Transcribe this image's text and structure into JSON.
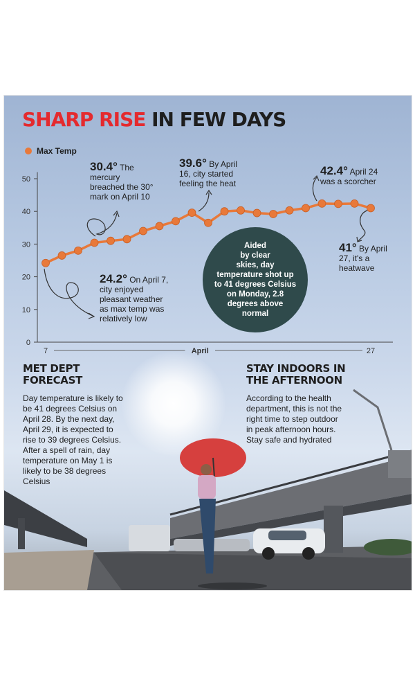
{
  "title": {
    "highlight": "SHARP RISE",
    "rest": "IN FEW DAYS"
  },
  "legend": {
    "label": "Max Temp"
  },
  "chart_data": {
    "type": "line",
    "series": [
      {
        "name": "Max Temp",
        "color": "#e8793a",
        "x": [
          7,
          8,
          9,
          10,
          11,
          12,
          13,
          14,
          15,
          16,
          17,
          18,
          19,
          20,
          21,
          22,
          23,
          24,
          25,
          26,
          27
        ],
        "values": [
          24.2,
          26.5,
          28,
          30.4,
          31,
          31.5,
          34,
          35.5,
          37,
          39.6,
          36.5,
          40,
          40.3,
          39.5,
          39.2,
          40.3,
          41,
          42.4,
          42.3,
          42.4,
          41
        ]
      }
    ],
    "y_ticks": [
      0,
      10,
      20,
      30,
      40,
      50
    ],
    "ylim": [
      0,
      52
    ],
    "xlim": [
      7,
      27
    ],
    "x_tick_labels": [
      {
        "value": 7,
        "label": "7"
      },
      {
        "value": 27,
        "label": "27"
      }
    ],
    "x_axis_label": "April",
    "grid": false
  },
  "annotations": [
    {
      "value": "30.4°",
      "text_lines": [
        " The",
        "mercury",
        "breached the 30°",
        "mark on April 10"
      ]
    },
    {
      "value": "39.6°",
      "text_lines": [
        " By April",
        "16,  city started",
        "feeling the heat"
      ]
    },
    {
      "value": "42.4°",
      "text_lines": [
        " April 24",
        "was a scorcher"
      ]
    },
    {
      "value": "41°",
      "text_lines": [
        " By April",
        "27, it's a",
        "heatwave"
      ]
    },
    {
      "value": "24.2°",
      "text_lines": [
        " On April 7,",
        "city enjoyed",
        "pleasant weather",
        "as max temp was",
        "relatively low"
      ]
    }
  ],
  "callout": {
    "lines": [
      "Aided",
      "by clear",
      "skies, day",
      "temperature shot up",
      "to 41 degrees Celsius",
      "on Monday,  2.8",
      "degrees above",
      "normal"
    ]
  },
  "forecast": {
    "heading_lines": [
      "MET DEPT",
      "FORECAST"
    ],
    "body_lines": [
      "Day temperature is likely to",
      "be 41 degrees Celsius on",
      "April 28. By the next day,",
      "April 29, it is expected to",
      "rise to 39 degrees Celsius.",
      "After a spell of rain, day",
      "temperature on May 1 is",
      "likely to be 38 degrees",
      "Celsius"
    ]
  },
  "indoors": {
    "heading_lines": [
      "STAY INDOORS IN",
      "THE AFTERNOON"
    ],
    "body_lines": [
      "According to the health",
      "department, this is not the",
      "right time to step outdoor",
      "in peak afternoon hours.",
      "Stay safe and hydrated"
    ]
  }
}
